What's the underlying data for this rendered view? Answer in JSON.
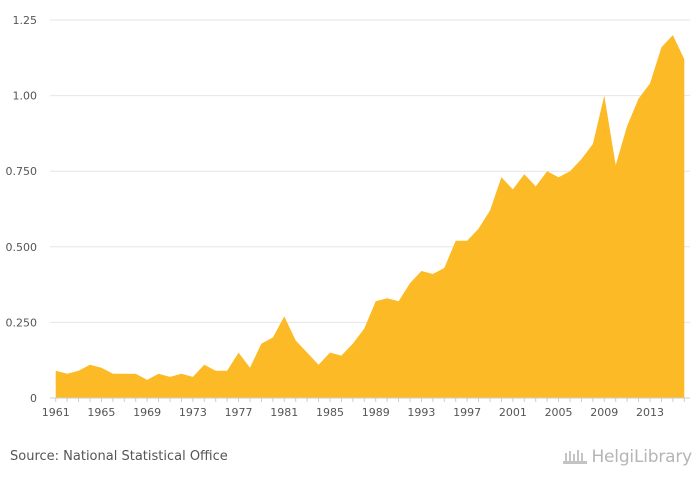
{
  "chart_data": {
    "type": "area",
    "title": "",
    "xlabel": "",
    "ylabel": "",
    "x": [
      1961,
      1962,
      1963,
      1964,
      1965,
      1966,
      1967,
      1968,
      1969,
      1970,
      1971,
      1972,
      1973,
      1974,
      1975,
      1976,
      1977,
      1978,
      1979,
      1980,
      1981,
      1982,
      1983,
      1984,
      1985,
      1986,
      1987,
      1988,
      1989,
      1990,
      1991,
      1992,
      1993,
      1994,
      1995,
      1996,
      1997,
      1998,
      1999,
      2000,
      2001,
      2002,
      2003,
      2004,
      2005,
      2006,
      2007,
      2008,
      2009,
      2010,
      2011,
      2012,
      2013,
      2014,
      2015,
      2016
    ],
    "values": [
      0.09,
      0.08,
      0.09,
      0.11,
      0.1,
      0.08,
      0.08,
      0.08,
      0.06,
      0.08,
      0.07,
      0.08,
      0.07,
      0.11,
      0.09,
      0.09,
      0.15,
      0.1,
      0.18,
      0.2,
      0.27,
      0.19,
      0.15,
      0.11,
      0.15,
      0.14,
      0.18,
      0.23,
      0.32,
      0.33,
      0.32,
      0.38,
      0.42,
      0.41,
      0.43,
      0.52,
      0.52,
      0.56,
      0.62,
      0.73,
      0.69,
      0.74,
      0.7,
      0.75,
      0.73,
      0.75,
      0.79,
      0.84,
      1.0,
      0.77,
      0.9,
      0.99,
      1.04,
      1.16,
      1.2,
      1.12
    ],
    "x_ticks": [
      "1961",
      "1965",
      "1969",
      "1973",
      "1977",
      "1981",
      "1985",
      "1989",
      "1993",
      "1997",
      "2001",
      "2005",
      "2009",
      "2013"
    ],
    "y_ticks": [
      "0",
      "0.250",
      "0.500",
      "0.750",
      "1.00",
      "1.25"
    ],
    "y_tick_values": [
      0,
      0.25,
      0.5,
      0.75,
      1.0,
      1.25
    ],
    "ylim": [
      0,
      1.25
    ],
    "grid": true,
    "color": "#FBBA26"
  },
  "footer": {
    "source": "Source: National Statistical Office",
    "logo_text": "HelgiLibrary"
  }
}
